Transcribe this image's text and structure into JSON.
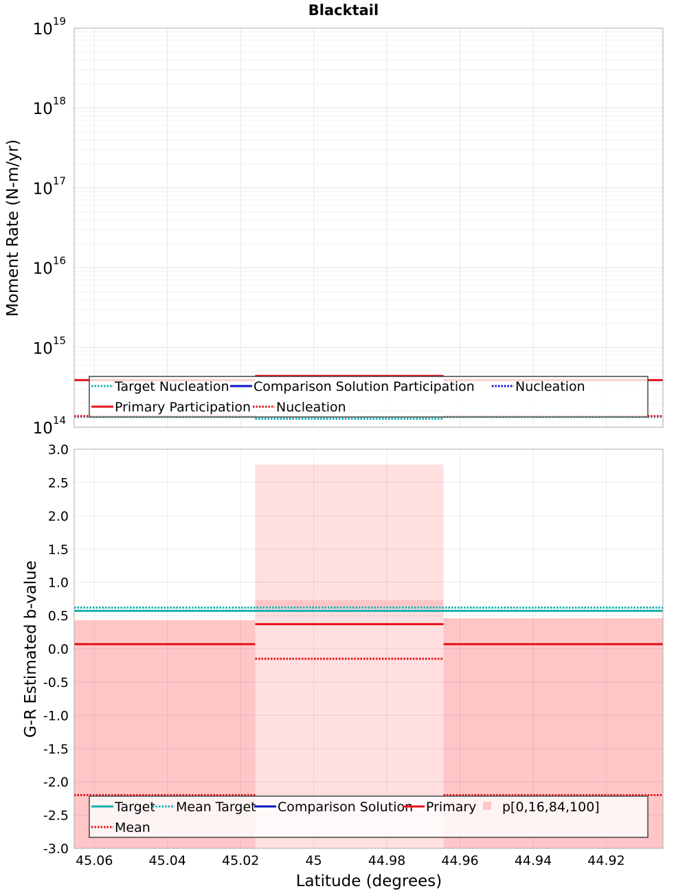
{
  "figure": {
    "title": "Blacktail",
    "xlabel": "Latitude (degrees)"
  },
  "colors": {
    "target": "#10b0b0",
    "comparison": "#0a14c8",
    "primary": "#e60f18",
    "primary_light": "#f2aab4",
    "band_outer": "#ffdfe0",
    "band_inner": "#ffc6c8",
    "grid": "#e6e6e6",
    "frame": "#aaaaaa"
  },
  "chart_data": [
    {
      "type": "line",
      "panel": "moment-rate",
      "ylabel": "Moment Rate (N-m/yr)",
      "yscale": "log",
      "ylim": [
        100000000000000.0,
        1e+19
      ],
      "ytick_labels": [
        {
          "base": "10",
          "exp": "14"
        },
        {
          "base": "10",
          "exp": "15"
        },
        {
          "base": "10",
          "exp": "16"
        },
        {
          "base": "10",
          "exp": "17"
        },
        {
          "base": "10",
          "exp": "18"
        },
        {
          "base": "10",
          "exp": "19"
        }
      ],
      "xlim": [
        45.0655,
        44.9045
      ],
      "x_reversed": true,
      "xticks": [
        45.06,
        45.04,
        45.02,
        45.0,
        44.98,
        44.96,
        44.94,
        44.92
      ],
      "segments": [
        45.0655,
        45.016,
        44.9645,
        44.9045
      ],
      "series": [
        {
          "name": "Target Nucleation",
          "style": "dotted",
          "color_key": "target",
          "values": [
            135000000000000.0,
            128000000000000.0,
            135000000000000.0
          ]
        },
        {
          "name": "Comparison Solution Participation",
          "style": "solid",
          "color_key": "comparison",
          "values": [
            null,
            null,
            null
          ]
        },
        {
          "name": "Nucleation",
          "style": "dotted",
          "color_key": "comparison",
          "values": [
            null,
            null,
            null
          ]
        },
        {
          "name": "Primary Participation",
          "style": "solid",
          "color_key": "primary",
          "values": [
            390000000000000.0,
            440000000000000.0,
            390000000000000.0
          ]
        },
        {
          "name": "Nucleation",
          "style": "dotted",
          "color_key": "primary",
          "values": [
            138000000000000.0,
            160000000000000.0,
            138000000000000.0
          ]
        }
      ],
      "legend": {
        "position": "bottom-center",
        "rows": [
          [
            0,
            1,
            2
          ],
          [
            3,
            4
          ]
        ]
      },
      "grid": true
    },
    {
      "type": "line",
      "panel": "b-value",
      "ylabel": "G-R Estimated b-value",
      "ylim": [
        -3.0,
        3.0
      ],
      "yticks": [
        "3.0",
        "2.5",
        "2.0",
        "1.5",
        "1.0",
        "0.5",
        "0.0",
        "-0.5",
        "-1.0",
        "-1.5",
        "-2.0",
        "-2.5",
        "-3.0"
      ],
      "xlim": [
        45.0655,
        44.9045
      ],
      "x_reversed": true,
      "xticks": [
        45.06,
        45.04,
        45.02,
        45.0,
        44.98,
        44.96,
        44.94,
        44.92
      ],
      "segments": [
        45.0655,
        45.016,
        44.9645,
        44.9045
      ],
      "series": [
        {
          "name": "Target",
          "style": "solid",
          "color_key": "target",
          "values": [
            0.57,
            0.57,
            0.57
          ]
        },
        {
          "name": "Mean Target",
          "style": "dotted",
          "color_key": "target",
          "values": [
            0.62,
            0.62,
            0.62
          ]
        },
        {
          "name": "Comparison Solution",
          "style": "solid",
          "color_key": "comparison",
          "values": [
            null,
            null,
            null
          ]
        },
        {
          "name": "Primary",
          "style": "solid",
          "color_key": "primary",
          "values": [
            0.07,
            0.37,
            0.07
          ]
        },
        {
          "name": "Mean",
          "style": "dotted",
          "color_key": "primary",
          "values": [
            -2.2,
            -0.15,
            -2.2
          ]
        }
      ],
      "bands": {
        "name": "p[0,16,84,100]",
        "p0": [
          -3.0,
          -3.0,
          -3.0
        ],
        "p16": [
          -1.62,
          0.62,
          -1.6
        ],
        "p84": [
          0.43,
          0.73,
          0.46
        ],
        "p100": [
          0.43,
          2.77,
          0.46
        ]
      },
      "legend": {
        "position": "bottom-center",
        "rows": [
          [
            0,
            1,
            2,
            3,
            "band"
          ],
          [
            4
          ]
        ]
      },
      "grid": true
    }
  ]
}
